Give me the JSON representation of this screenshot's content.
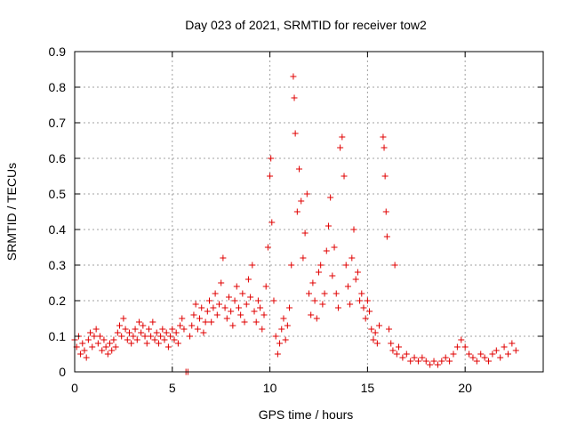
{
  "chart_data": {
    "type": "scatter",
    "title": "Day 023 of 2021, SRMTID for receiver tow2",
    "xlabel": "GPS time / hours",
    "ylabel": "SRMTID / TECUs",
    "xlim": [
      0,
      24
    ],
    "ylim": [
      0,
      0.9
    ],
    "xticks": [
      "0",
      "5",
      "10",
      "15",
      "20"
    ],
    "yticks": [
      "0",
      "0.1",
      "0.2",
      "0.3",
      "0.4",
      "0.5",
      "0.6",
      "0.7",
      "0.8",
      "0.9"
    ],
    "grid": true,
    "marker": "+",
    "series": [
      {
        "name": "SRMTID",
        "color": "#e00000",
        "points": [
          [
            0.0,
            0.09
          ],
          [
            0.1,
            0.07
          ],
          [
            0.2,
            0.1
          ],
          [
            0.3,
            0.05
          ],
          [
            0.4,
            0.08
          ],
          [
            0.5,
            0.06
          ],
          [
            0.6,
            0.04
          ],
          [
            0.7,
            0.09
          ],
          [
            0.8,
            0.11
          ],
          [
            0.9,
            0.07
          ],
          [
            1.0,
            0.1
          ],
          [
            1.1,
            0.12
          ],
          [
            1.2,
            0.08
          ],
          [
            1.3,
            0.1
          ],
          [
            1.4,
            0.06
          ],
          [
            1.5,
            0.09
          ],
          [
            1.6,
            0.07
          ],
          [
            1.7,
            0.05
          ],
          [
            1.8,
            0.08
          ],
          [
            1.9,
            0.06
          ],
          [
            2.0,
            0.09
          ],
          [
            2.1,
            0.07
          ],
          [
            2.2,
            0.11
          ],
          [
            2.3,
            0.13
          ],
          [
            2.4,
            0.1
          ],
          [
            2.5,
            0.15
          ],
          [
            2.6,
            0.12
          ],
          [
            2.7,
            0.09
          ],
          [
            2.8,
            0.11
          ],
          [
            2.9,
            0.08
          ],
          [
            3.0,
            0.1
          ],
          [
            3.1,
            0.12
          ],
          [
            3.2,
            0.09
          ],
          [
            3.3,
            0.14
          ],
          [
            3.4,
            0.11
          ],
          [
            3.5,
            0.13
          ],
          [
            3.6,
            0.1
          ],
          [
            3.7,
            0.08
          ],
          [
            3.8,
            0.12
          ],
          [
            3.9,
            0.1
          ],
          [
            4.0,
            0.14
          ],
          [
            4.1,
            0.09
          ],
          [
            4.2,
            0.11
          ],
          [
            4.3,
            0.08
          ],
          [
            4.4,
            0.1
          ],
          [
            4.5,
            0.12
          ],
          [
            4.6,
            0.09
          ],
          [
            4.7,
            0.11
          ],
          [
            4.8,
            0.07
          ],
          [
            4.9,
            0.1
          ],
          [
            5.0,
            0.12
          ],
          [
            5.1,
            0.09
          ],
          [
            5.2,
            0.11
          ],
          [
            5.3,
            0.08
          ],
          [
            5.4,
            0.13
          ],
          [
            5.5,
            0.15
          ],
          [
            5.6,
            0.12
          ],
          [
            5.7,
            0.0
          ],
          [
            5.8,
            0.0
          ],
          [
            5.9,
            0.1
          ],
          [
            6.0,
            0.13
          ],
          [
            6.1,
            0.16
          ],
          [
            6.2,
            0.19
          ],
          [
            6.3,
            0.12
          ],
          [
            6.4,
            0.15
          ],
          [
            6.5,
            0.18
          ],
          [
            6.6,
            0.11
          ],
          [
            6.7,
            0.14
          ],
          [
            6.8,
            0.17
          ],
          [
            6.9,
            0.2
          ],
          [
            7.0,
            0.14
          ],
          [
            7.1,
            0.18
          ],
          [
            7.2,
            0.22
          ],
          [
            7.3,
            0.16
          ],
          [
            7.4,
            0.19
          ],
          [
            7.5,
            0.25
          ],
          [
            7.6,
            0.32
          ],
          [
            7.7,
            0.18
          ],
          [
            7.8,
            0.15
          ],
          [
            7.9,
            0.21
          ],
          [
            8.0,
            0.17
          ],
          [
            8.1,
            0.13
          ],
          [
            8.2,
            0.2
          ],
          [
            8.3,
            0.24
          ],
          [
            8.4,
            0.18
          ],
          [
            8.5,
            0.16
          ],
          [
            8.6,
            0.22
          ],
          [
            8.7,
            0.14
          ],
          [
            8.8,
            0.19
          ],
          [
            8.9,
            0.26
          ],
          [
            9.0,
            0.21
          ],
          [
            9.1,
            0.3
          ],
          [
            9.2,
            0.17
          ],
          [
            9.3,
            0.14
          ],
          [
            9.4,
            0.2
          ],
          [
            9.5,
            0.18
          ],
          [
            9.6,
            0.12
          ],
          [
            9.7,
            0.16
          ],
          [
            9.8,
            0.24
          ],
          [
            9.9,
            0.35
          ],
          [
            10.0,
            0.55
          ],
          [
            10.05,
            0.6
          ],
          [
            10.1,
            0.42
          ],
          [
            10.2,
            0.2
          ],
          [
            10.3,
            0.1
          ],
          [
            10.4,
            0.05
          ],
          [
            10.5,
            0.08
          ],
          [
            10.6,
            0.12
          ],
          [
            10.7,
            0.15
          ],
          [
            10.8,
            0.09
          ],
          [
            10.9,
            0.13
          ],
          [
            11.0,
            0.18
          ],
          [
            11.1,
            0.3
          ],
          [
            11.2,
            0.83
          ],
          [
            11.25,
            0.77
          ],
          [
            11.3,
            0.67
          ],
          [
            11.4,
            0.45
          ],
          [
            11.5,
            0.57
          ],
          [
            11.6,
            0.48
          ],
          [
            11.7,
            0.32
          ],
          [
            11.8,
            0.39
          ],
          [
            11.9,
            0.5
          ],
          [
            12.0,
            0.22
          ],
          [
            12.1,
            0.16
          ],
          [
            12.2,
            0.25
          ],
          [
            12.3,
            0.2
          ],
          [
            12.4,
            0.15
          ],
          [
            12.5,
            0.28
          ],
          [
            12.6,
            0.3
          ],
          [
            12.7,
            0.19
          ],
          [
            12.8,
            0.22
          ],
          [
            12.9,
            0.34
          ],
          [
            13.0,
            0.41
          ],
          [
            13.1,
            0.49
          ],
          [
            13.2,
            0.27
          ],
          [
            13.3,
            0.35
          ],
          [
            13.4,
            0.22
          ],
          [
            13.5,
            0.18
          ],
          [
            13.6,
            0.63
          ],
          [
            13.7,
            0.66
          ],
          [
            13.8,
            0.55
          ],
          [
            13.9,
            0.3
          ],
          [
            14.0,
            0.24
          ],
          [
            14.1,
            0.19
          ],
          [
            14.2,
            0.32
          ],
          [
            14.3,
            0.4
          ],
          [
            14.4,
            0.26
          ],
          [
            14.5,
            0.28
          ],
          [
            14.6,
            0.2
          ],
          [
            14.7,
            0.22
          ],
          [
            14.8,
            0.18
          ],
          [
            14.9,
            0.15
          ],
          [
            15.0,
            0.2
          ],
          [
            15.1,
            0.17
          ],
          [
            15.2,
            0.12
          ],
          [
            15.3,
            0.09
          ],
          [
            15.4,
            0.11
          ],
          [
            15.5,
            0.08
          ],
          [
            15.6,
            0.13
          ],
          [
            15.8,
            0.66
          ],
          [
            15.85,
            0.63
          ],
          [
            15.9,
            0.55
          ],
          [
            15.95,
            0.45
          ],
          [
            16.0,
            0.38
          ],
          [
            16.1,
            0.12
          ],
          [
            16.2,
            0.08
          ],
          [
            16.3,
            0.06
          ],
          [
            16.4,
            0.3
          ],
          [
            16.5,
            0.05
          ],
          [
            16.6,
            0.07
          ],
          [
            16.8,
            0.04
          ],
          [
            17.0,
            0.05
          ],
          [
            17.2,
            0.03
          ],
          [
            17.4,
            0.04
          ],
          [
            17.6,
            0.03
          ],
          [
            17.8,
            0.04
          ],
          [
            18.0,
            0.03
          ],
          [
            18.2,
            0.02
          ],
          [
            18.4,
            0.03
          ],
          [
            18.6,
            0.02
          ],
          [
            18.8,
            0.03
          ],
          [
            19.0,
            0.04
          ],
          [
            19.2,
            0.03
          ],
          [
            19.4,
            0.05
          ],
          [
            19.6,
            0.07
          ],
          [
            19.8,
            0.09
          ],
          [
            20.0,
            0.07
          ],
          [
            20.2,
            0.05
          ],
          [
            20.4,
            0.04
          ],
          [
            20.6,
            0.03
          ],
          [
            20.8,
            0.05
          ],
          [
            21.0,
            0.04
          ],
          [
            21.2,
            0.03
          ],
          [
            21.4,
            0.05
          ],
          [
            21.6,
            0.06
          ],
          [
            21.8,
            0.04
          ],
          [
            22.0,
            0.07
          ],
          [
            22.2,
            0.05
          ],
          [
            22.4,
            0.08
          ],
          [
            22.6,
            0.06
          ]
        ]
      }
    ]
  }
}
